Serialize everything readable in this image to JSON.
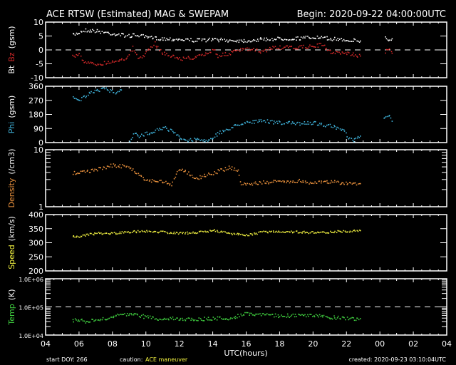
{
  "header": {
    "title": "ACE RTSW (Estimated) MAG & SWEPAM",
    "begin": "Begin: 2020-09-22 04:00:00UTC"
  },
  "footer": {
    "start_doy": "start DOY: 266",
    "caution_label": "caution:",
    "caution_text": "ACE maneuver",
    "created": "created: 2020-09-23 03:10:04UTC"
  },
  "colors": {
    "bt": "#ffffff",
    "bz": "#d02828",
    "phi": "#40b4dc",
    "density": "#e8903c",
    "speed": "#f0f040",
    "temp": "#40d040"
  },
  "chart_data": {
    "type": "scatter",
    "xlabel": "UTC(hours)",
    "x_range_hours": [
      4,
      28
    ],
    "x_tick_labels": [
      "04",
      "06",
      "08",
      "10",
      "12",
      "14",
      "16",
      "18",
      "20",
      "22",
      "00",
      "02",
      "04"
    ],
    "panels": [
      {
        "id": "mag",
        "ylabel_parts": [
          "Bt",
          "Bz",
          "(gsm)"
        ],
        "scale": "linear",
        "ylim": [
          -10,
          10
        ],
        "tick_labels": [
          "-10",
          "-5",
          "0",
          "5",
          "10"
        ],
        "ticks": [
          -10,
          -5,
          0,
          5,
          10
        ],
        "dashed_line": 0,
        "series": [
          {
            "name": "Bt",
            "color_key": "bt",
            "points": [
              [
                5.6,
                5.5
              ],
              [
                6.0,
                6.5
              ],
              [
                6.3,
                7.3
              ],
              [
                7.0,
                7.0
              ],
              [
                8.0,
                6.0
              ],
              [
                9.0,
                5.2
              ],
              [
                9.5,
                5.6
              ],
              [
                10.0,
                4.6
              ],
              [
                11.0,
                4.2
              ],
              [
                12.0,
                4.0
              ],
              [
                13.0,
                3.6
              ],
              [
                14.0,
                3.9
              ],
              [
                15.0,
                3.6
              ],
              [
                16.0,
                3.5
              ],
              [
                17.0,
                4.0
              ],
              [
                18.0,
                4.2
              ],
              [
                19.0,
                4.3
              ],
              [
                20.0,
                4.7
              ],
              [
                21.0,
                4.2
              ],
              [
                22.0,
                3.8
              ],
              [
                22.8,
                3.4
              ]
            ]
          },
          {
            "name": "Bt-late",
            "color_key": "bt",
            "points": [
              [
                24.3,
                4.5
              ],
              [
                24.5,
                3.5
              ],
              [
                24.7,
                4.2
              ]
            ]
          },
          {
            "name": "Bz",
            "color_key": "bz",
            "points": [
              [
                5.6,
                -2.0
              ],
              [
                6.0,
                -1.5
              ],
              [
                6.3,
                -4.5
              ],
              [
                7.0,
                -5.0
              ],
              [
                8.0,
                -4.0
              ],
              [
                8.9,
                -2.5
              ],
              [
                9.2,
                1.0
              ],
              [
                9.5,
                -3.0
              ],
              [
                10.0,
                -1.0
              ],
              [
                10.5,
                2.5
              ],
              [
                11.0,
                -1.0
              ],
              [
                12.0,
                -3.0
              ],
              [
                13.0,
                -2.5
              ],
              [
                13.7,
                -1.0
              ],
              [
                14.0,
                0.5
              ],
              [
                14.3,
                -2.0
              ],
              [
                15.0,
                -1.0
              ],
              [
                15.5,
                0.0
              ],
              [
                16.0,
                0.5
              ],
              [
                17.0,
                -0.5
              ],
              [
                17.5,
                1.0
              ],
              [
                18.0,
                1.0
              ],
              [
                19.0,
                1.0
              ],
              [
                20.0,
                1.5
              ],
              [
                20.5,
                2.0
              ],
              [
                21.0,
                -0.5
              ],
              [
                22.0,
                -1.0
              ],
              [
                22.8,
                -2.0
              ]
            ]
          },
          {
            "name": "Bz-late",
            "color_key": "bz",
            "points": [
              [
                24.3,
                -0.5
              ],
              [
                24.5,
                0.5
              ],
              [
                24.7,
                -1.0
              ]
            ]
          }
        ]
      },
      {
        "id": "phi",
        "ylabel_parts": [
          "Phi",
          "(gsm)"
        ],
        "scale": "linear",
        "ylim": [
          0,
          360
        ],
        "tick_labels": [
          "0",
          "90",
          "180",
          "270",
          "360"
        ],
        "ticks": [
          0,
          90,
          180,
          270,
          360
        ],
        "series": [
          {
            "name": "Phi-high",
            "color_key": "phi",
            "points": [
              [
                5.6,
                300
              ],
              [
                6.0,
                275
              ],
              [
                6.5,
                310
              ],
              [
                7.0,
                330
              ],
              [
                7.5,
                355
              ],
              [
                8.0,
                320
              ],
              [
                8.5,
                340
              ]
            ]
          },
          {
            "name": "Phi-low",
            "color_key": "phi",
            "points": [
              [
                9.0,
                20
              ],
              [
                9.3,
                60
              ],
              [
                9.6,
                40
              ],
              [
                10.0,
                60
              ],
              [
                10.5,
                80
              ],
              [
                11.0,
                100
              ],
              [
                11.5,
                80
              ],
              [
                12.0,
                30
              ],
              [
                12.5,
                15
              ],
              [
                13.0,
                30
              ],
              [
                13.5,
                10
              ],
              [
                14.0,
                40
              ],
              [
                14.5,
                70
              ],
              [
                15.0,
                95
              ],
              [
                15.5,
                120
              ],
              [
                16.0,
                135
              ],
              [
                17.0,
                140
              ],
              [
                18.0,
                130
              ],
              [
                19.0,
                125
              ],
              [
                20.0,
                130
              ],
              [
                21.0,
                110
              ],
              [
                21.8,
                80
              ],
              [
                22.1,
                30
              ],
              [
                22.4,
                15
              ],
              [
                22.8,
                45
              ]
            ]
          },
          {
            "name": "Phi-late",
            "color_key": "phi",
            "points": [
              [
                24.2,
                150
              ],
              [
                24.5,
                180
              ],
              [
                24.7,
                140
              ]
            ]
          }
        ]
      },
      {
        "id": "density",
        "ylabel_parts": [
          "Density",
          "(/cm3)"
        ],
        "scale": "log",
        "ylim": [
          1,
          10
        ],
        "tick_labels": [
          "1",
          "10"
        ],
        "ticks": [
          1,
          10
        ],
        "series": [
          {
            "name": "Density",
            "color_key": "density",
            "points": [
              [
                5.6,
                4.0
              ],
              [
                6.5,
                4.3
              ],
              [
                7.0,
                4.5
              ],
              [
                8.0,
                5.5
              ],
              [
                9.0,
                5.0
              ],
              [
                9.5,
                3.8
              ],
              [
                10.0,
                3.0
              ],
              [
                11.0,
                2.8
              ],
              [
                11.5,
                2.5
              ],
              [
                12.0,
                4.8
              ],
              [
                12.5,
                4.0
              ],
              [
                13.0,
                3.2
              ],
              [
                14.0,
                4.0
              ],
              [
                15.0,
                5.0
              ],
              [
                15.5,
                4.3
              ],
              [
                15.7,
                2.5
              ],
              [
                17.0,
                2.7
              ],
              [
                18.0,
                2.8
              ],
              [
                19.0,
                2.9
              ],
              [
                20.0,
                2.7
              ],
              [
                21.0,
                2.8
              ],
              [
                22.0,
                2.6
              ],
              [
                22.8,
                2.6
              ]
            ]
          }
        ]
      },
      {
        "id": "speed",
        "ylabel_parts": [
          "Speed",
          "(km/s)"
        ],
        "scale": "linear",
        "ylim": [
          200,
          400
        ],
        "tick_labels": [
          "200",
          "250",
          "300",
          "350",
          "400"
        ],
        "ticks": [
          200,
          250,
          300,
          350,
          400
        ],
        "series": [
          {
            "name": "Speed",
            "color_key": "speed",
            "points": [
              [
                5.6,
                325
              ],
              [
                6.0,
                325
              ],
              [
                7.0,
                335
              ],
              [
                8.0,
                335
              ],
              [
                9.0,
                340
              ],
              [
                10.0,
                343
              ],
              [
                11.0,
                340
              ],
              [
                12.0,
                335
              ],
              [
                13.0,
                338
              ],
              [
                14.0,
                345
              ],
              [
                15.0,
                335
              ],
              [
                16.0,
                328
              ],
              [
                17.0,
                340
              ],
              [
                18.0,
                342
              ],
              [
                19.0,
                340
              ],
              [
                20.0,
                338
              ],
              [
                21.0,
                340
              ],
              [
                22.0,
                343
              ],
              [
                22.8,
                345
              ]
            ]
          }
        ]
      },
      {
        "id": "temp",
        "ylabel_parts": [
          "Temp",
          "(K)"
        ],
        "scale": "log",
        "ylim": [
          10000,
          1000000
        ],
        "tick_labels": [
          "1.0E+04",
          "1.0E+05",
          "1.0E+06"
        ],
        "ticks": [
          10000,
          100000,
          1000000
        ],
        "dashed_line": 100000,
        "series": [
          {
            "name": "Temp",
            "color_key": "temp",
            "points": [
              [
                5.6,
                35000
              ],
              [
                6.5,
                32000
              ],
              [
                7.5,
                38000
              ],
              [
                8.5,
                55000
              ],
              [
                9.5,
                52000
              ],
              [
                10.5,
                40000
              ],
              [
                12.0,
                40000
              ],
              [
                13.0,
                38000
              ],
              [
                14.0,
                40000
              ],
              [
                15.0,
                42000
              ],
              [
                16.0,
                60000
              ],
              [
                17.0,
                58000
              ],
              [
                18.0,
                50000
              ],
              [
                19.0,
                52000
              ],
              [
                20.0,
                50000
              ],
              [
                21.0,
                45000
              ],
              [
                22.0,
                40000
              ],
              [
                22.8,
                40000
              ]
            ]
          }
        ]
      }
    ]
  }
}
